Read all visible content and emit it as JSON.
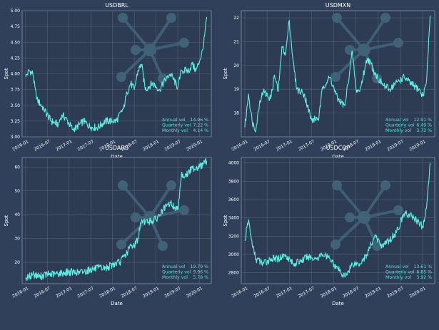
{
  "colors": {
    "background": "#31405a",
    "plot_bg": "#2d3b53",
    "series": "#5af2e6",
    "text": "#ffffff",
    "stat_text": "#52e6dd"
  },
  "chart_data": [
    {
      "type": "line",
      "title": "USDBRL",
      "xlabel": "Date",
      "ylabel": "Spot",
      "ylim": [
        3.0,
        5.0
      ],
      "yticks": [
        "3.00",
        "3.25",
        "3.50",
        "3.75",
        "4.00",
        "4.25",
        "4.50",
        "4.75",
        "5.00"
      ],
      "xticks": [
        "2016-01",
        "2016-07",
        "2017-01",
        "2017-07",
        "2018-01",
        "2018-07",
        "2019-01",
        "2019-07",
        "2020-01"
      ],
      "series": [
        {
          "x": [
            "2016-01",
            "2016-02",
            "2016-03",
            "2016-04",
            "2016-06",
            "2016-08",
            "2016-10",
            "2016-11",
            "2016-12",
            "2017-02",
            "2017-03",
            "2017-05",
            "2017-07",
            "2017-09",
            "2017-11",
            "2018-01",
            "2018-02",
            "2018-04",
            "2018-05",
            "2018-06",
            "2018-07",
            "2018-08",
            "2018-09",
            "2018-10",
            "2018-12",
            "2019-02",
            "2019-04",
            "2019-05",
            "2019-07",
            "2019-08",
            "2019-10",
            "2019-11",
            "2019-12",
            "2020-01",
            "2020-02",
            "2020-03"
          ],
          "values": [
            3.95,
            4.05,
            4.0,
            3.6,
            3.45,
            3.25,
            3.2,
            3.35,
            3.3,
            3.12,
            3.15,
            3.25,
            3.15,
            3.15,
            3.25,
            3.25,
            3.25,
            3.45,
            3.7,
            3.85,
            3.75,
            4.05,
            4.15,
            3.75,
            3.85,
            3.75,
            3.95,
            4.0,
            3.78,
            4.05,
            4.05,
            4.15,
            4.05,
            4.2,
            4.4,
            4.9
          ]
        }
      ],
      "stats": [
        {
          "label": "Annual vol",
          "value": "14.96 %"
        },
        {
          "label": "Quarterly vol",
          "value": "7.22 %"
        },
        {
          "label": "Monthly vol",
          "value": "4.14 %"
        }
      ]
    },
    {
      "type": "line",
      "title": "USDMXN",
      "xlabel": "Date",
      "ylabel": "Spot",
      "ylim": [
        17.0,
        22.3
      ],
      "yticks": [
        "18",
        "19",
        "20",
        "21",
        "22"
      ],
      "xticks": [
        "2016-01",
        "2016-07",
        "2017-01",
        "2017-07",
        "2018-01",
        "2018-07",
        "2019-01",
        "2019-07",
        "2020-01"
      ],
      "series": [
        {
          "x": [
            "2016-01",
            "2016-02",
            "2016-03",
            "2016-04",
            "2016-05",
            "2016-06",
            "2016-08",
            "2016-09",
            "2016-10",
            "2016-11",
            "2016-12",
            "2017-01",
            "2017-02",
            "2017-03",
            "2017-05",
            "2017-07",
            "2017-09",
            "2017-10",
            "2017-12",
            "2018-02",
            "2018-04",
            "2018-06",
            "2018-07",
            "2018-08",
            "2018-10",
            "2018-11",
            "2018-12",
            "2019-02",
            "2019-04",
            "2019-06",
            "2019-08",
            "2019-10",
            "2019-12",
            "2020-01",
            "2020-02",
            "2020-03"
          ],
          "values": [
            17.4,
            18.8,
            17.6,
            17.3,
            18.5,
            18.9,
            18.6,
            19.6,
            18.9,
            20.8,
            20.5,
            21.9,
            20.2,
            19.0,
            18.8,
            17.7,
            17.8,
            19.1,
            19.5,
            18.6,
            18.3,
            20.6,
            19.0,
            18.9,
            20.3,
            20.1,
            19.7,
            19.2,
            19.0,
            19.3,
            19.5,
            19.2,
            19.0,
            18.7,
            19.3,
            22.1
          ]
        }
      ],
      "stats": [
        {
          "label": "Annual vol",
          "value": "12.91 %"
        },
        {
          "label": "Quarterly vol",
          "value": "6.49 %"
        },
        {
          "label": "Monthly vol",
          "value": "3.72 %"
        }
      ]
    },
    {
      "type": "line",
      "title": "USDARS",
      "xlabel": "Date",
      "ylabel": "Spot",
      "ylim": [
        11,
        64
      ],
      "yticks": [
        "20",
        "30",
        "40",
        "50",
        "60"
      ],
      "xticks": [
        "2016-01",
        "2016-07",
        "2017-01",
        "2017-07",
        "2018-01",
        "2018-07",
        "2019-01",
        "2019-07",
        "2020-01"
      ],
      "series": [
        {
          "x": [
            "2016-01",
            "2016-02",
            "2016-03",
            "2016-05",
            "2016-07",
            "2016-09",
            "2016-11",
            "2017-01",
            "2017-03",
            "2017-05",
            "2017-07",
            "2017-09",
            "2017-11",
            "2018-01",
            "2018-03",
            "2018-05",
            "2018-06",
            "2018-07",
            "2018-08",
            "2018-09",
            "2018-10",
            "2018-11",
            "2019-01",
            "2019-03",
            "2019-05",
            "2019-06",
            "2019-07",
            "2019-08",
            "2019-09",
            "2019-11",
            "2020-01",
            "2020-03"
          ],
          "values": [
            13,
            14,
            15,
            14,
            15,
            15,
            15.5,
            16,
            15.5,
            16,
            17,
            17.5,
            17.5,
            19,
            20,
            24,
            27,
            27,
            30,
            38,
            37,
            37,
            38,
            42,
            45,
            43,
            42,
            57,
            56,
            59.5,
            60,
            62.5
          ]
        }
      ],
      "stats": [
        {
          "label": "Annual vol",
          "value": "19.79 %"
        },
        {
          "label": "Quarterly vol",
          "value": "9.96 %"
        },
        {
          "label": "Monthly vol",
          "value": "5.78 %"
        }
      ]
    },
    {
      "type": "line",
      "title": "USDCOP",
      "xlabel": "Date",
      "ylabel": "Spot",
      "ylim": [
        2680,
        4060
      ],
      "yticks": [
        "2800",
        "3000",
        "3200",
        "3400",
        "3600",
        "3800",
        "4000"
      ],
      "xticks": [
        "2016-01",
        "2016-07",
        "2017-01",
        "2017-07",
        "2018-01",
        "2018-07",
        "2019-01",
        "2019-07",
        "2020-01"
      ],
      "series": [
        {
          "x": [
            "2016-01",
            "2016-02",
            "2016-03",
            "2016-04",
            "2016-06",
            "2016-08",
            "2016-10",
            "2016-12",
            "2017-02",
            "2017-04",
            "2017-06",
            "2017-08",
            "2017-10",
            "2017-12",
            "2018-02",
            "2018-04",
            "2018-06",
            "2018-08",
            "2018-10",
            "2018-12",
            "2019-02",
            "2019-04",
            "2019-06",
            "2019-08",
            "2019-10",
            "2019-12",
            "2020-01",
            "2020-02",
            "2020-03"
          ],
          "values": [
            3150,
            3380,
            3100,
            2950,
            2900,
            2950,
            2950,
            3000,
            2900,
            2920,
            2980,
            2950,
            3000,
            2950,
            2850,
            2750,
            2900,
            2900,
            3000,
            3200,
            3100,
            3150,
            3250,
            3450,
            3420,
            3350,
            3300,
            3500,
            4000
          ]
        }
      ],
      "stats": [
        {
          "label": "Annual vol",
          "value": "13.61 %"
        },
        {
          "label": "Quarterly vol",
          "value": "6.85 %"
        },
        {
          "label": "Monthly vol",
          "value": "3.92 %"
        }
      ]
    }
  ]
}
